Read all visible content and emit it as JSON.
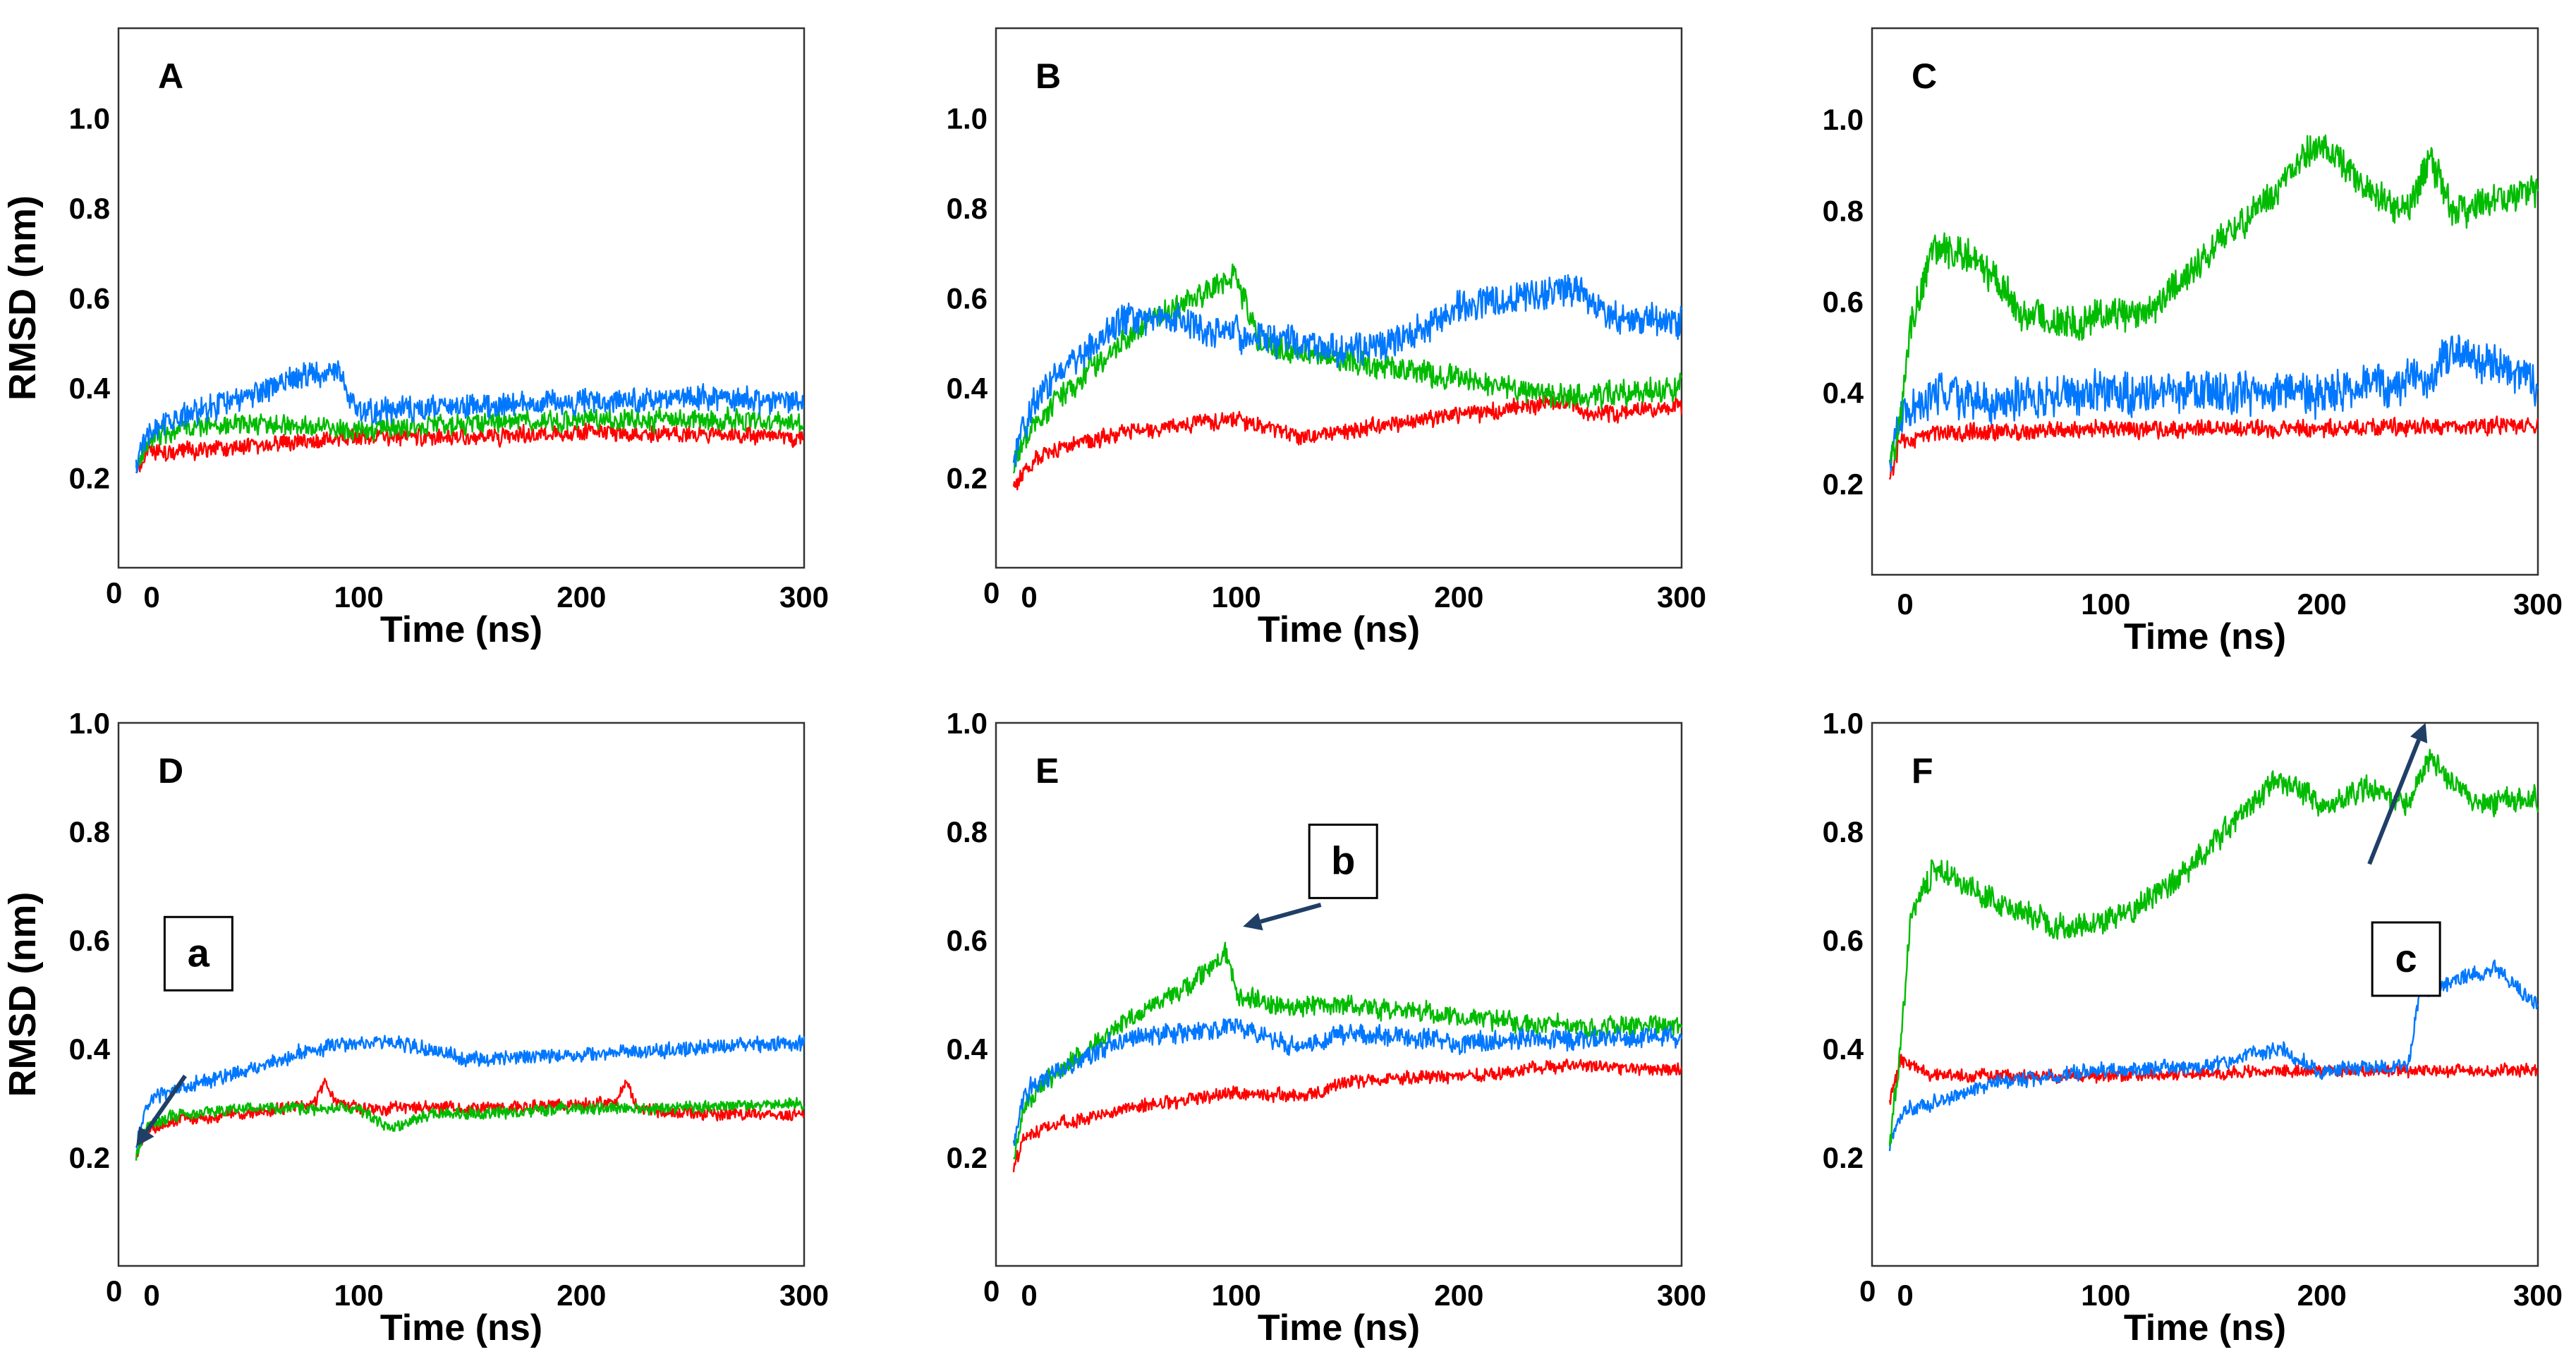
{
  "chart_data": [
    {
      "type": "line",
      "panel_label": "A",
      "xlabel": "Time (ns)",
      "ylabel": "RMSD (nm)",
      "xlim": [
        0,
        300
      ],
      "ylim": [
        0,
        1.2
      ],
      "x_ticks": [
        0,
        100,
        200,
        300
      ],
      "y_ticks": [
        0.2,
        0.4,
        0.6,
        0.8,
        1.0
      ],
      "x_tick_labels": [
        "0",
        "100",
        "200",
        "300"
      ],
      "y_tick_labels": [
        "0.2",
        "0.4",
        "0.6",
        "0.8",
        "1.0"
      ],
      "origin_label": "0",
      "series": [
        {
          "name": "red",
          "color": "#ff0000",
          "noise": 0.02,
          "x": [
            0,
            5,
            20,
            50,
            100,
            150,
            200,
            250,
            300
          ],
          "y": [
            0.22,
            0.25,
            0.26,
            0.27,
            0.29,
            0.29,
            0.3,
            0.3,
            0.29
          ]
        },
        {
          "name": "green",
          "color": "#00bb00",
          "noise": 0.025,
          "x": [
            0,
            5,
            20,
            50,
            100,
            150,
            200,
            250,
            300
          ],
          "y": [
            0.22,
            0.28,
            0.31,
            0.32,
            0.31,
            0.32,
            0.33,
            0.33,
            0.32
          ]
        },
        {
          "name": "blue",
          "color": "#0077ff",
          "noise": 0.03,
          "x": [
            0,
            5,
            20,
            50,
            70,
            90,
            100,
            150,
            200,
            250,
            300
          ],
          "y": [
            0.22,
            0.3,
            0.34,
            0.38,
            0.42,
            0.44,
            0.35,
            0.36,
            0.37,
            0.38,
            0.37
          ]
        }
      ]
    },
    {
      "type": "line",
      "panel_label": "B",
      "xlabel": "Time (ns)",
      "ylabel": "",
      "xlim": [
        0,
        300
      ],
      "ylim": [
        0,
        1.2
      ],
      "x_ticks": [
        0,
        100,
        200,
        300
      ],
      "y_ticks": [
        0.2,
        0.4,
        0.6,
        0.8,
        1.0
      ],
      "x_tick_labels": [
        "0",
        "100",
        "200",
        "300"
      ],
      "y_tick_labels": [
        "0.2",
        "0.4",
        "0.6",
        "0.8",
        "1.0"
      ],
      "origin_label": "0",
      "series": [
        {
          "name": "red",
          "color": "#ff0000",
          "noise": 0.02,
          "x": [
            0,
            10,
            30,
            60,
            100,
            130,
            200,
            250,
            260,
            300
          ],
          "y": [
            0.18,
            0.24,
            0.28,
            0.31,
            0.33,
            0.29,
            0.34,
            0.37,
            0.34,
            0.36
          ]
        },
        {
          "name": "green",
          "color": "#00bb00",
          "noise": 0.03,
          "x": [
            0,
            10,
            30,
            60,
            80,
            100,
            110,
            150,
            200,
            250,
            300
          ],
          "y": [
            0.24,
            0.33,
            0.42,
            0.55,
            0.6,
            0.65,
            0.5,
            0.46,
            0.42,
            0.38,
            0.4
          ]
        },
        {
          "name": "blue",
          "color": "#0077ff",
          "noise": 0.04,
          "x": [
            0,
            10,
            30,
            50,
            70,
            100,
            150,
            180,
            200,
            250,
            270,
            300
          ],
          "y": [
            0.25,
            0.38,
            0.48,
            0.55,
            0.55,
            0.52,
            0.48,
            0.52,
            0.58,
            0.62,
            0.55,
            0.55
          ]
        }
      ]
    },
    {
      "type": "line",
      "panel_label": "C",
      "xlabel": "Time (ns)",
      "ylabel": "",
      "xlim": [
        0,
        300
      ],
      "ylim": [
        0,
        1.2
      ],
      "x_ticks": [
        0,
        100,
        200,
        300
      ],
      "y_ticks": [
        0.2,
        0.4,
        0.6,
        0.8,
        1.0
      ],
      "x_tick_labels": [
        "0",
        "100",
        "200",
        "300"
      ],
      "y_tick_labels": [
        "0.2",
        "0.4",
        "0.6",
        "0.8",
        "1.0"
      ],
      "origin_label": "",
      "series": [
        {
          "name": "red",
          "color": "#ff0000",
          "noise": 0.02,
          "x": [
            0,
            5,
            20,
            100,
            200,
            300
          ],
          "y": [
            0.22,
            0.29,
            0.31,
            0.32,
            0.32,
            0.33
          ]
        },
        {
          "name": "blue",
          "color": "#0077ff",
          "noise": 0.05,
          "x": [
            0,
            5,
            20,
            50,
            100,
            150,
            200,
            250,
            260,
            270,
            300
          ],
          "y": [
            0.25,
            0.35,
            0.4,
            0.38,
            0.4,
            0.4,
            0.4,
            0.43,
            0.5,
            0.48,
            0.42
          ]
        },
        {
          "name": "green",
          "color": "#00bb00",
          "noise": 0.04,
          "x": [
            0,
            5,
            10,
            20,
            40,
            60,
            80,
            100,
            120,
            150,
            180,
            200,
            220,
            240,
            250,
            260,
            280,
            300
          ],
          "y": [
            0.22,
            0.35,
            0.55,
            0.72,
            0.7,
            0.58,
            0.55,
            0.57,
            0.58,
            0.72,
            0.85,
            0.95,
            0.85,
            0.8,
            0.92,
            0.8,
            0.82,
            0.85
          ]
        }
      ]
    },
    {
      "type": "line",
      "panel_label": "D",
      "xlabel": "Time (ns)",
      "ylabel": "RMSD (nm)",
      "xlim": [
        0,
        300
      ],
      "ylim": [
        0,
        1.0
      ],
      "x_ticks": [
        0,
        100,
        200,
        300
      ],
      "y_ticks": [
        0.2,
        0.4,
        0.6,
        0.8,
        1.0
      ],
      "x_tick_labels": [
        "0",
        "100",
        "200",
        "300"
      ],
      "y_tick_labels": [
        "0.2",
        "0.4",
        "0.6",
        "0.8",
        "1.0"
      ],
      "origin_label": "0",
      "series": [
        {
          "name": "red",
          "color": "#ff0000",
          "noise": 0.012,
          "x": [
            0,
            5,
            20,
            50,
            80,
            85,
            90,
            100,
            150,
            215,
            220,
            225,
            250,
            300
          ],
          "y": [
            0.2,
            0.25,
            0.27,
            0.28,
            0.3,
            0.34,
            0.3,
            0.29,
            0.29,
            0.3,
            0.34,
            0.29,
            0.28,
            0.28
          ]
        },
        {
          "name": "green",
          "color": "#00bb00",
          "noise": 0.012,
          "x": [
            0,
            5,
            20,
            50,
            100,
            115,
            130,
            150,
            200,
            250,
            300
          ],
          "y": [
            0.2,
            0.26,
            0.28,
            0.29,
            0.29,
            0.25,
            0.28,
            0.28,
            0.29,
            0.29,
            0.3
          ]
        },
        {
          "name": "blue",
          "color": "#0077ff",
          "noise": 0.015,
          "x": [
            0,
            5,
            20,
            50,
            80,
            100,
            120,
            150,
            200,
            250,
            300
          ],
          "y": [
            0.22,
            0.3,
            0.33,
            0.36,
            0.4,
            0.41,
            0.41,
            0.38,
            0.39,
            0.4,
            0.41
          ]
        }
      ],
      "callouts": [
        {
          "label": "a",
          "box_at": [
            28,
            0.575
          ],
          "arrow_from": [
            22,
            0.35
          ],
          "arrow_to": [
            0,
            0.22
          ]
        }
      ]
    },
    {
      "type": "line",
      "panel_label": "E",
      "xlabel": "Time (ns)",
      "ylabel": "",
      "xlim": [
        0,
        300
      ],
      "ylim": [
        0,
        1.0
      ],
      "x_ticks": [
        0,
        100,
        200,
        300
      ],
      "y_ticks": [
        0.2,
        0.4,
        0.6,
        0.8,
        1.0
      ],
      "x_tick_labels": [
        "0",
        "100",
        "200",
        "300"
      ],
      "y_tick_labels": [
        "0.2",
        "0.4",
        "0.6",
        "0.8",
        "1.0"
      ],
      "origin_label": "0",
      "series": [
        {
          "name": "red",
          "color": "#ff0000",
          "noise": 0.013,
          "x": [
            0,
            5,
            20,
            50,
            100,
            130,
            150,
            200,
            250,
            300
          ],
          "y": [
            0.18,
            0.24,
            0.26,
            0.29,
            0.32,
            0.31,
            0.34,
            0.35,
            0.37,
            0.36
          ]
        },
        {
          "name": "green",
          "color": "#00bb00",
          "noise": 0.02,
          "x": [
            0,
            5,
            20,
            50,
            80,
            95,
            100,
            120,
            150,
            200,
            250,
            300
          ],
          "y": [
            0.2,
            0.3,
            0.36,
            0.45,
            0.52,
            0.58,
            0.5,
            0.48,
            0.48,
            0.46,
            0.44,
            0.44
          ]
        },
        {
          "name": "blue",
          "color": "#0077ff",
          "noise": 0.02,
          "x": [
            0,
            5,
            20,
            50,
            100,
            130,
            150,
            200,
            250,
            300
          ],
          "y": [
            0.22,
            0.32,
            0.36,
            0.42,
            0.44,
            0.4,
            0.43,
            0.41,
            0.42,
            0.42
          ]
        }
      ],
      "callouts": [
        {
          "label": "b",
          "box_at": [
            148,
            0.745
          ],
          "arrow_from": [
            138,
            0.665
          ],
          "arrow_to": [
            103,
            0.625
          ]
        }
      ]
    },
    {
      "type": "line",
      "panel_label": "F",
      "xlabel": "Time (ns)",
      "ylabel": "",
      "xlim": [
        0,
        300
      ],
      "ylim": [
        0,
        1.0
      ],
      "x_ticks": [
        0,
        100,
        200,
        300
      ],
      "y_ticks": [
        0.2,
        0.4,
        0.6,
        0.8,
        1.0
      ],
      "x_tick_labels": [
        "0",
        "100",
        "200",
        "300"
      ],
      "y_tick_labels": [
        "0.2",
        "0.4",
        "0.6",
        "0.8",
        "1.0"
      ],
      "origin_label": "0",
      "series": [
        {
          "name": "red",
          "color": "#ff0000",
          "noise": 0.012,
          "x": [
            0,
            5,
            20,
            100,
            200,
            300
          ],
          "y": [
            0.3,
            0.38,
            0.35,
            0.35,
            0.36,
            0.36
          ]
        },
        {
          "name": "blue",
          "color": "#0077ff",
          "noise": 0.015,
          "x": [
            0,
            5,
            20,
            50,
            100,
            150,
            180,
            200,
            240,
            245,
            260,
            280,
            300
          ],
          "y": [
            0.22,
            0.28,
            0.3,
            0.34,
            0.36,
            0.37,
            0.4,
            0.36,
            0.37,
            0.5,
            0.52,
            0.55,
            0.48
          ]
        },
        {
          "name": "green",
          "color": "#00bb00",
          "noise": 0.025,
          "x": [
            0,
            5,
            10,
            20,
            50,
            80,
            100,
            130,
            150,
            180,
            200,
            220,
            240,
            250,
            270,
            300
          ],
          "y": [
            0.22,
            0.4,
            0.65,
            0.73,
            0.67,
            0.62,
            0.63,
            0.7,
            0.78,
            0.9,
            0.85,
            0.88,
            0.85,
            0.93,
            0.85,
            0.86
          ]
        }
      ],
      "callouts": [
        {
          "label": "c",
          "box_at": [
            239,
            0.565
          ],
          "arrow_from": [
            222,
            0.74
          ],
          "arrow_to": [
            248,
            1.0
          ]
        }
      ]
    }
  ]
}
